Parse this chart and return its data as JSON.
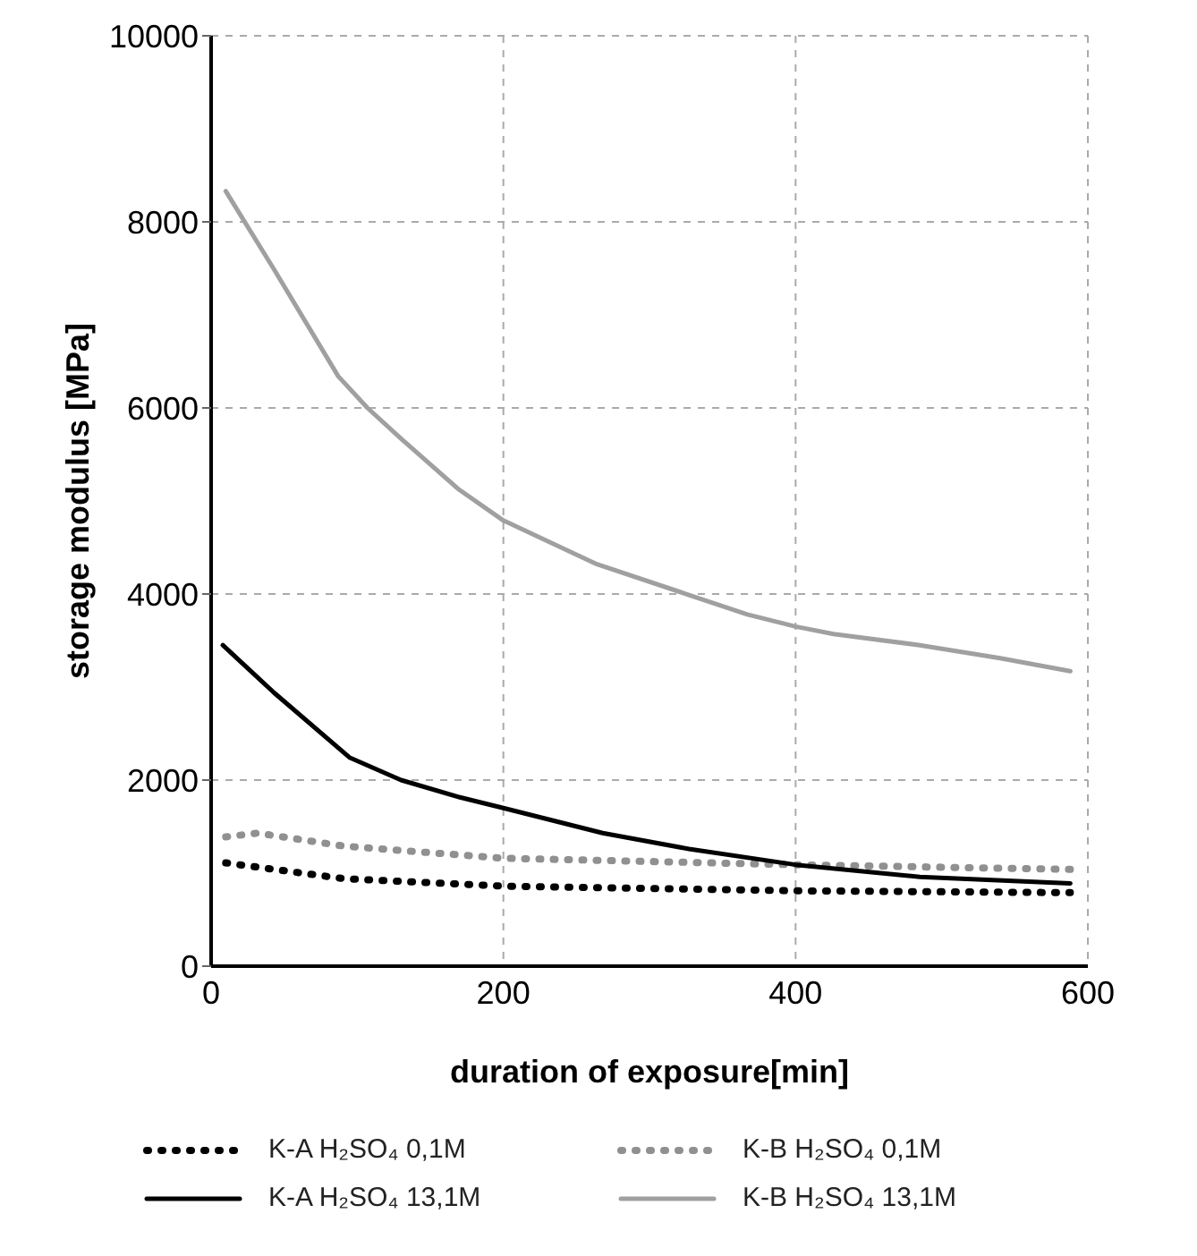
{
  "chart_data": {
    "type": "line",
    "xlabel": "duration of exposure[min]",
    "ylabel": "storage modulus [MPa]",
    "xlim": [
      0,
      600
    ],
    "xticks": [
      0,
      200,
      400,
      600
    ],
    "ylim": [
      0,
      10000
    ],
    "yticks": [
      0,
      2000,
      4000,
      6000,
      8000,
      10000
    ],
    "grid": true,
    "legend": "bottom",
    "marker": "none",
    "series": [
      {
        "name": "K-A H₂SO₄ 0,1M",
        "color": "#000000",
        "line_style": "dotted",
        "x": [
          10,
          91,
          200,
          400,
          588
        ],
        "values": [
          1110,
          940,
          860,
          810,
          790
        ]
      },
      {
        "name": "K-B H₂SO₄ 0,1M",
        "color": "#909090",
        "line_style": "dotted",
        "x": [
          10,
          32,
          91,
          200,
          400,
          588
        ],
        "values": [
          1390,
          1430,
          1290,
          1160,
          1090,
          1040
        ]
      },
      {
        "name": "K-A H₂SO₄ 13,1M",
        "color": "#000000",
        "line_style": "solid",
        "x": [
          8,
          43,
          95,
          130,
          169,
          200,
          268,
          327,
          400,
          485,
          588
        ],
        "values": [
          3450,
          2940,
          2240,
          2000,
          1820,
          1700,
          1430,
          1260,
          1090,
          960,
          890
        ]
      },
      {
        "name": "K-B H₂SO₄ 13,1M",
        "color": "#a0a0a0",
        "line_style": "solid",
        "x": [
          10,
          43,
          87,
          107,
          130,
          169,
          200,
          264,
          327,
          367,
          400,
          426,
          485,
          540,
          588
        ],
        "values": [
          8330,
          7490,
          6340,
          6000,
          5670,
          5130,
          4790,
          4320,
          3990,
          3780,
          3650,
          3570,
          3450,
          3310,
          3170
        ]
      }
    ]
  }
}
